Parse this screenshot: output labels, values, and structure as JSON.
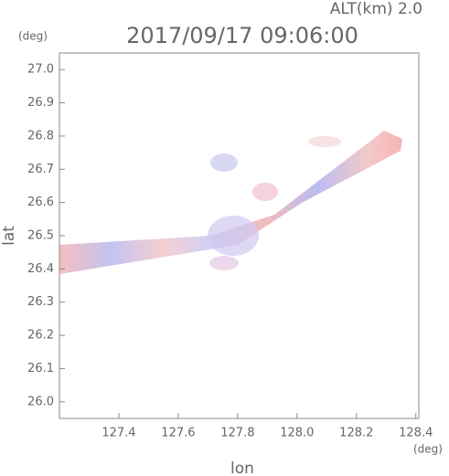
{
  "chart_data": {
    "type": "map",
    "altitude_label": "ALT(km) 2.0",
    "title": "2017/09/17 09:06:00",
    "x_label": "lon",
    "y_label": "lat",
    "x_unit": "(deg)",
    "y_unit": "(deg)",
    "xlim": [
      127.2,
      128.41
    ],
    "ylim": [
      25.95,
      27.05
    ],
    "xticks": [
      127.4,
      127.6,
      127.8,
      {
        "value": 128,
        "label": "128.0"
      },
      128.2,
      128.4
    ],
    "yticks": [
      {
        "value": 26,
        "label": "26.0"
      },
      26.1,
      26.2,
      26.3,
      26.4,
      26.5,
      26.6,
      26.7,
      26.8,
      26.9,
      {
        "value": 27,
        "label": "27.0"
      }
    ]
  }
}
